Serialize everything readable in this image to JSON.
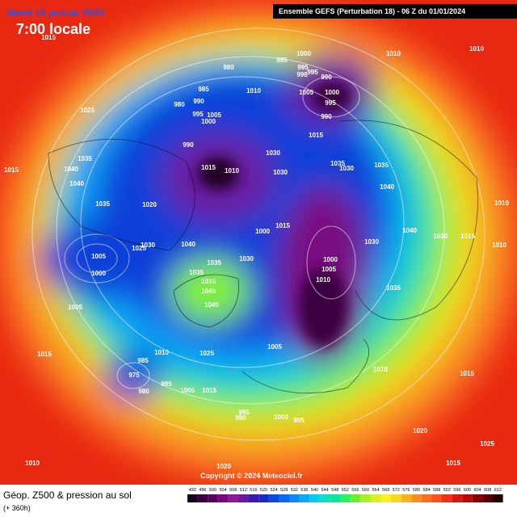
{
  "header": {
    "date": "Mardi 16 janvier 2024",
    "time": "7:00 locale",
    "run": "Ensemble GEFS  (Perturbation 18)  - 06 Z du 01/01/2024"
  },
  "copyright": "Copyright © 2024 Meteociel.fr",
  "caption": {
    "title": "Géop. Z500 & pression au sol",
    "lead": "(+ 360h)"
  },
  "isobar_labels": [
    "1015",
    "1025",
    "1015",
    "1035",
    "1040",
    "1040",
    "1035",
    "1020",
    "1005",
    "1000",
    "1030",
    "1025",
    "1040",
    "1035",
    "1035",
    "1035",
    "1045",
    "1040",
    "1030",
    "1005",
    "1015",
    "1010",
    "1025",
    "985",
    "975",
    "980",
    "995",
    "1005",
    "1015",
    "995",
    "990",
    "1000",
    "995",
    "1010",
    "1020",
    "980",
    "985",
    "980",
    "990",
    "995",
    "1005",
    "1000",
    "990",
    "1015",
    "1010",
    "1030",
    "1030",
    "995",
    "1000",
    "995",
    "998",
    "995",
    "990",
    "1010",
    "1005",
    "1000",
    "995",
    "990",
    "1015",
    "1035",
    "1030",
    "1035",
    "1040",
    "1040",
    "1030",
    "1015",
    "1010",
    "1010",
    "1010",
    "1010",
    "1000",
    "1015",
    "1000",
    "1005",
    "1010",
    "1030",
    "1035",
    "1005",
    "1010",
    "1015",
    "1025",
    "1020",
    "1015"
  ],
  "legend": {
    "labels": [
      492,
      496,
      500,
      504,
      508,
      512,
      516,
      520,
      524,
      528,
      532,
      536,
      540,
      544,
      548,
      552,
      556,
      560,
      564,
      568,
      572,
      576,
      580,
      584,
      588,
      592,
      596,
      600,
      604,
      608,
      612
    ],
    "colors": [
      "#1a0020",
      "#3a0040",
      "#5a0060",
      "#7a0a80",
      "#8c1a9a",
      "#6a1aa0",
      "#3a1ab0",
      "#1a2ac8",
      "#0a4ae0",
      "#0a6af0",
      "#0a8af8",
      "#0aaaf8",
      "#0acae8",
      "#0ae0c8",
      "#0ae898",
      "#2af060",
      "#6af030",
      "#aaf020",
      "#d8f020",
      "#f8f020",
      "#f8d820",
      "#f8b020",
      "#f89020",
      "#f87020",
      "#f85020",
      "#f03018",
      "#d81810",
      "#b80808",
      "#880000",
      "#580000",
      "#200000"
    ]
  }
}
